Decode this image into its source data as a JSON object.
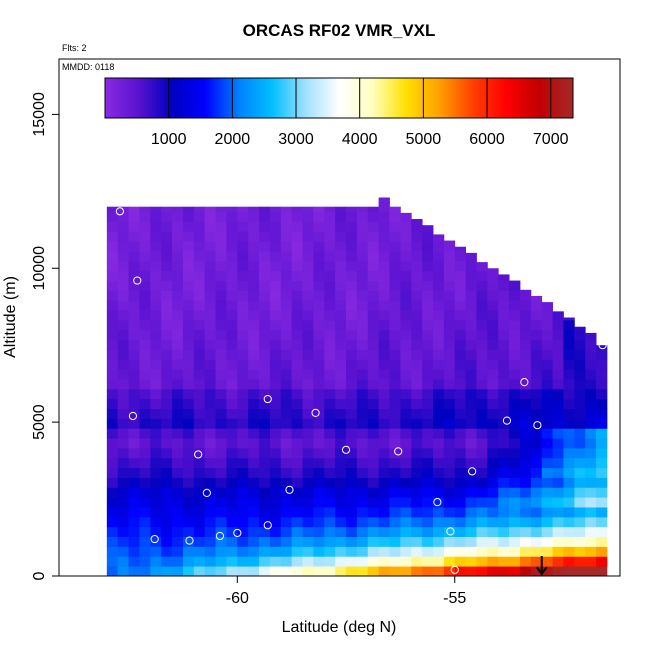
{
  "chart_data": {
    "type": "heatmap",
    "title": "ORCAS RF02 VMR_VXL",
    "annotations": {
      "flights": "Flts: 2",
      "date": "MMDD: 0118"
    },
    "xlabel": "Latitude (deg N)",
    "ylabel": "Altitude (m)",
    "xlim": [
      -64.1,
      -51.2
    ],
    "ylim": [
      0,
      16800
    ],
    "x_ticks": [
      -60,
      -55
    ],
    "x_tick_labels": [
      "-60",
      "-55"
    ],
    "y_ticks": [
      0,
      5000,
      10000,
      15000
    ],
    "y_tick_labels": [
      "0",
      "5000",
      "10000",
      "15000"
    ],
    "colorbar": {
      "range": [
        0,
        7350
      ],
      "ticks": [
        1000,
        2000,
        3000,
        4000,
        5000,
        6000,
        7000
      ],
      "tick_labels": [
        "1000",
        "2000",
        "3000",
        "4000",
        "5000",
        "6000",
        "7000"
      ],
      "colors": [
        "#8a2be2",
        "#5a12d0",
        "#0000bf",
        "#0000ff",
        "#0080ff",
        "#00bfff",
        "#a0e0ff",
        "#ffffff",
        "#ffffc0",
        "#ffe000",
        "#ffa000",
        "#ff4000",
        "#ff0000",
        "#c00000",
        "#a52a2a"
      ]
    },
    "grid": {
      "lat_start": -63.0,
      "lat_step": 0.25,
      "alt_step": 320,
      "column_tops": [
        12000,
        12000,
        12000,
        12000,
        12000,
        12000,
        12000,
        12000,
        12000,
        12000,
        12000,
        12000,
        12000,
        12000,
        12000,
        12000,
        12000,
        12000,
        12000,
        12000,
        12000,
        12000,
        12000,
        12000,
        12000,
        12300,
        12000,
        11800,
        11600,
        11400,
        11100,
        10900,
        10700,
        10500,
        10200,
        10000,
        9800,
        9600,
        9300,
        9100,
        8900,
        8600,
        8400,
        8100,
        7900,
        7500
      ],
      "surface_alt": 350
    },
    "sample_points": [
      {
        "lat": -62.7,
        "alt": 11850
      },
      {
        "lat": -61.3,
        "alt": 12200
      },
      {
        "lat": -62.3,
        "alt": 9600
      },
      {
        "lat": -52.7,
        "alt": 9300
      },
      {
        "lat": -51.6,
        "alt": 7500
      },
      {
        "lat": -53.4,
        "alt": 6300
      },
      {
        "lat": -59.3,
        "alt": 5750
      },
      {
        "lat": -58.2,
        "alt": 5300
      },
      {
        "lat": -62.4,
        "alt": 5200
      },
      {
        "lat": -53.8,
        "alt": 5050
      },
      {
        "lat": -53.1,
        "alt": 4900
      },
      {
        "lat": -57.5,
        "alt": 4100
      },
      {
        "lat": -56.3,
        "alt": 4050
      },
      {
        "lat": -60.9,
        "alt": 3950
      },
      {
        "lat": -54.6,
        "alt": 3400
      },
      {
        "lat": -58.8,
        "alt": 2800
      },
      {
        "lat": -60.7,
        "alt": 2700
      },
      {
        "lat": -55.4,
        "alt": 2400
      },
      {
        "lat": -59.3,
        "alt": 1650
      },
      {
        "lat": -60.0,
        "alt": 1400
      },
      {
        "lat": -60.4,
        "alt": 1300
      },
      {
        "lat": -61.9,
        "alt": 1200
      },
      {
        "lat": -61.1,
        "alt": 1150
      },
      {
        "lat": -55.1,
        "alt": 1450
      },
      {
        "lat": -63.2,
        "alt": 450
      },
      {
        "lat": -55.0,
        "alt": 200
      }
    ],
    "arrow_marker_lat": -53.0
  }
}
